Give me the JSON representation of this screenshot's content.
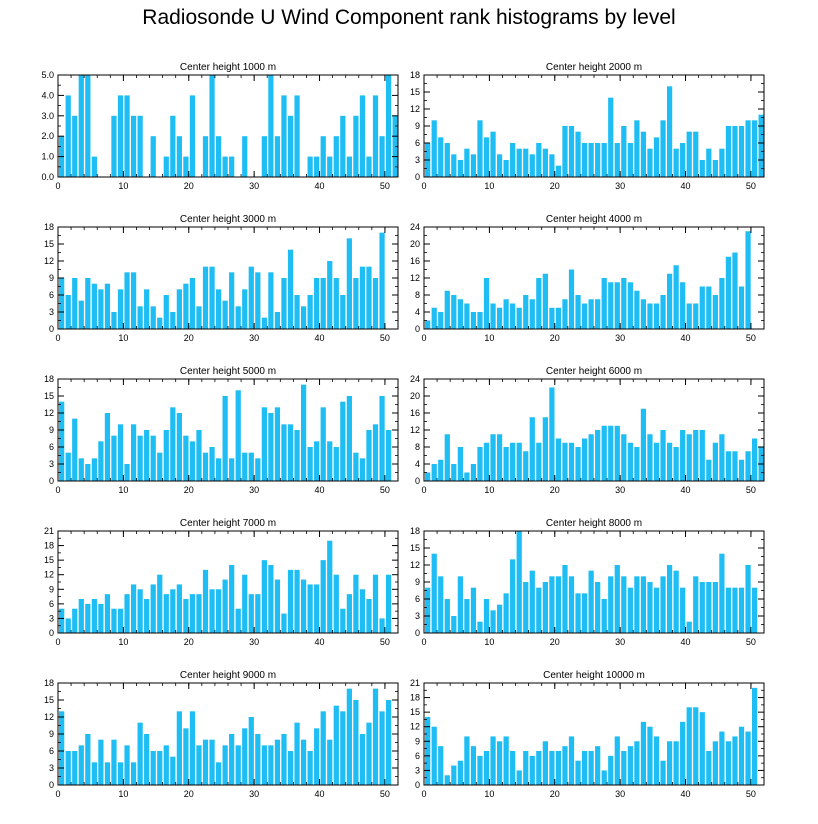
{
  "title": "Radiosonde U Wind Component rank histograms by level",
  "colors": {
    "bar": "#1ebdf4",
    "axis": "#000000",
    "background": "#ffffff"
  },
  "chart_data": [
    {
      "type": "bar",
      "title": "Center height 1000 m",
      "xlim": [
        0,
        52
      ],
      "ylim": [
        0,
        5
      ],
      "x_ticks": [
        0,
        10,
        20,
        30,
        40,
        50
      ],
      "x_tick_labels": [
        "0",
        "10",
        "20",
        "30",
        "40",
        "50"
      ],
      "y_ticks": [
        0,
        1,
        2,
        3,
        4,
        5
      ],
      "y_tick_labels": [
        "0.0",
        "1.0",
        "2.0",
        "3.0",
        "4.0",
        "5.0"
      ],
      "values": [
        2,
        4,
        3,
        5,
        5,
        1,
        0,
        0,
        3,
        4,
        4,
        3,
        3,
        0,
        2,
        0,
        1,
        3,
        2,
        1,
        4,
        0,
        2,
        5,
        2,
        1,
        1,
        0,
        2,
        0,
        0,
        2,
        5,
        2,
        4,
        3,
        4,
        0,
        1,
        1,
        2,
        1,
        2,
        3,
        1,
        3,
        4,
        1,
        4,
        2,
        5,
        3
      ]
    },
    {
      "type": "bar",
      "title": "Center height 2000 m",
      "xlim": [
        0,
        52
      ],
      "ylim": [
        0,
        18
      ],
      "x_ticks": [
        0,
        10,
        20,
        30,
        40,
        50
      ],
      "x_tick_labels": [
        "0",
        "10",
        "20",
        "30",
        "40",
        "50"
      ],
      "y_ticks": [
        0,
        3,
        6,
        9,
        12,
        15,
        18
      ],
      "y_tick_labels": [
        "0",
        "3",
        "6",
        "9",
        "12",
        "15",
        "18"
      ],
      "values": [
        6,
        10,
        7,
        6,
        4,
        3,
        5,
        4,
        10,
        7,
        8,
        4,
        3,
        6,
        5,
        5,
        4,
        6,
        5,
        4,
        2,
        9,
        9,
        8,
        6,
        6,
        6,
        6,
        14,
        6,
        9,
        6,
        10,
        8,
        5,
        7,
        10,
        16,
        5,
        6,
        8,
        8,
        3,
        5,
        3,
        5,
        9,
        9,
        9,
        10,
        10,
        11
      ]
    },
    {
      "type": "bar",
      "title": "Center height 3000 m",
      "xlim": [
        0,
        52
      ],
      "ylim": [
        0,
        18
      ],
      "x_ticks": [
        0,
        10,
        20,
        30,
        40,
        50
      ],
      "x_tick_labels": [
        "0",
        "10",
        "20",
        "30",
        "40",
        "50"
      ],
      "y_ticks": [
        0,
        3,
        6,
        9,
        12,
        15,
        18
      ],
      "y_tick_labels": [
        "0",
        "3",
        "6",
        "9",
        "12",
        "15",
        "18"
      ],
      "values": [
        9,
        6,
        9,
        5,
        9,
        8,
        7,
        8,
        3,
        7,
        10,
        10,
        4,
        7,
        4,
        2,
        6,
        3,
        7,
        8,
        9,
        4,
        11,
        11,
        7,
        5,
        10,
        4,
        7,
        11,
        10,
        2,
        10,
        3,
        9,
        14,
        6,
        4,
        6,
        9,
        9,
        12,
        9,
        6,
        16,
        9,
        11,
        11,
        9,
        17,
        0,
        0
      ]
    },
    {
      "type": "bar",
      "title": "Center height 4000 m",
      "xlim": [
        0,
        52
      ],
      "ylim": [
        0,
        24
      ],
      "x_ticks": [
        0,
        10,
        20,
        30,
        40,
        50
      ],
      "x_tick_labels": [
        "0",
        "10",
        "20",
        "30",
        "40",
        "50"
      ],
      "y_ticks": [
        0,
        4,
        8,
        12,
        16,
        20,
        24
      ],
      "y_tick_labels": [
        "0",
        "4",
        "8",
        "12",
        "16",
        "20",
        "24"
      ],
      "values": [
        2,
        5,
        4,
        9,
        8,
        7,
        6,
        4,
        4,
        12,
        6,
        5,
        7,
        6,
        5,
        8,
        7,
        12,
        13,
        5,
        5,
        7,
        14,
        8,
        6,
        7,
        7,
        12,
        11,
        11,
        12,
        11,
        9,
        7,
        6,
        6,
        8,
        13,
        15,
        11,
        6,
        6,
        10,
        10,
        8,
        12,
        17,
        18,
        10,
        23,
        0,
        0
      ]
    },
    {
      "type": "bar",
      "title": "Center height 5000 m",
      "xlim": [
        0,
        52
      ],
      "ylim": [
        0,
        18
      ],
      "x_ticks": [
        0,
        10,
        20,
        30,
        40,
        50
      ],
      "x_tick_labels": [
        "0",
        "10",
        "20",
        "30",
        "40",
        "50"
      ],
      "y_ticks": [
        0,
        3,
        6,
        9,
        12,
        15,
        18
      ],
      "y_tick_labels": [
        "0",
        "3",
        "6",
        "9",
        "12",
        "15",
        "18"
      ],
      "values": [
        14,
        5,
        11,
        4,
        3,
        4,
        7,
        12,
        8,
        10,
        3,
        10,
        8,
        9,
        8,
        5,
        9,
        13,
        12,
        8,
        7,
        9,
        5,
        6,
        4,
        15,
        4,
        16,
        5,
        5,
        4,
        13,
        12,
        13,
        10,
        10,
        9,
        17,
        6,
        7,
        13,
        7,
        6,
        14,
        15,
        5,
        4,
        9,
        10,
        15,
        9,
        0
      ]
    },
    {
      "type": "bar",
      "title": "Center height 6000 m",
      "xlim": [
        0,
        52
      ],
      "ylim": [
        0,
        24
      ],
      "x_ticks": [
        0,
        10,
        20,
        30,
        40,
        50
      ],
      "x_tick_labels": [
        "0",
        "10",
        "20",
        "30",
        "40",
        "50"
      ],
      "y_ticks": [
        0,
        4,
        8,
        12,
        16,
        20,
        24
      ],
      "y_tick_labels": [
        "0",
        "4",
        "8",
        "12",
        "16",
        "20",
        "24"
      ],
      "values": [
        2,
        4,
        5,
        11,
        4,
        8,
        2,
        4,
        8,
        9,
        11,
        11,
        8,
        9,
        9,
        7,
        15,
        9,
        15,
        22,
        10,
        9,
        9,
        8,
        10,
        11,
        12,
        13,
        13,
        13,
        11,
        9,
        8,
        17,
        11,
        9,
        12,
        9,
        8,
        12,
        11,
        12,
        12,
        5,
        9,
        11,
        7,
        7,
        5,
        7,
        10,
        8
      ]
    },
    {
      "type": "bar",
      "title": "Center height 7000 m",
      "xlim": [
        0,
        52
      ],
      "ylim": [
        0,
        21
      ],
      "x_ticks": [
        0,
        10,
        20,
        30,
        40,
        50
      ],
      "x_tick_labels": [
        "0",
        "10",
        "20",
        "30",
        "40",
        "50"
      ],
      "y_ticks": [
        0,
        3,
        6,
        9,
        12,
        15,
        18,
        21
      ],
      "y_tick_labels": [
        "0",
        "3",
        "6",
        "9",
        "12",
        "15",
        "18",
        "21"
      ],
      "values": [
        5,
        3,
        5,
        7,
        6,
        7,
        6,
        8,
        5,
        5,
        8,
        10,
        9,
        7,
        10,
        12,
        8,
        9,
        10,
        7,
        8,
        8,
        13,
        9,
        9,
        11,
        14,
        5,
        12,
        8,
        8,
        15,
        14,
        11,
        4,
        13,
        13,
        11,
        10,
        10,
        15,
        19,
        12,
        5,
        8,
        12,
        9,
        7,
        12,
        3,
        12,
        0
      ]
    },
    {
      "type": "bar",
      "title": "Center height 8000 m",
      "xlim": [
        0,
        52
      ],
      "ylim": [
        0,
        18
      ],
      "x_ticks": [
        0,
        10,
        20,
        30,
        40,
        50
      ],
      "x_tick_labels": [
        "0",
        "10",
        "20",
        "30",
        "40",
        "50"
      ],
      "y_ticks": [
        0,
        3,
        6,
        9,
        12,
        15,
        18
      ],
      "y_tick_labels": [
        "0",
        "3",
        "6",
        "9",
        "12",
        "15",
        "18"
      ],
      "values": [
        8,
        14,
        10,
        6,
        3,
        10,
        6,
        8,
        2,
        6,
        4,
        5,
        7,
        13,
        18,
        9,
        11,
        8,
        9,
        10,
        10,
        12,
        10,
        7,
        7,
        11,
        9,
        6,
        10,
        12,
        10,
        8,
        10,
        10,
        9,
        8,
        10,
        12,
        11,
        8,
        2,
        10,
        9,
        9,
        9,
        14,
        8,
        8,
        8,
        12,
        8,
        0
      ]
    },
    {
      "type": "bar",
      "title": "Center height 9000 m",
      "xlim": [
        0,
        52
      ],
      "ylim": [
        0,
        18
      ],
      "x_ticks": [
        0,
        10,
        20,
        30,
        40,
        50
      ],
      "x_tick_labels": [
        "0",
        "10",
        "20",
        "30",
        "40",
        "50"
      ],
      "y_ticks": [
        0,
        3,
        6,
        9,
        12,
        15,
        18
      ],
      "y_tick_labels": [
        "0",
        "3",
        "6",
        "9",
        "12",
        "15",
        "18"
      ],
      "values": [
        13,
        6,
        6,
        7,
        9,
        4,
        8,
        4,
        8,
        4,
        7,
        4,
        11,
        9,
        6,
        6,
        7,
        5,
        13,
        10,
        13,
        7,
        8,
        8,
        4,
        7,
        9,
        7,
        10,
        12,
        9,
        7,
        7,
        8,
        9,
        6,
        11,
        8,
        6,
        10,
        13,
        8,
        14,
        13,
        17,
        15,
        9,
        11,
        17,
        13,
        15,
        0
      ]
    },
    {
      "type": "bar",
      "title": "Center height 10000 m",
      "xlim": [
        0,
        52
      ],
      "ylim": [
        0,
        21
      ],
      "x_ticks": [
        0,
        10,
        20,
        30,
        40,
        50
      ],
      "x_tick_labels": [
        "0",
        "10",
        "20",
        "30",
        "40",
        "50"
      ],
      "y_ticks": [
        0,
        3,
        6,
        9,
        12,
        15,
        18,
        21
      ],
      "y_tick_labels": [
        "0",
        "3",
        "6",
        "9",
        "12",
        "15",
        "18",
        "21"
      ],
      "values": [
        14,
        12,
        8,
        2,
        4,
        5,
        10,
        8,
        6,
        7,
        10,
        9,
        10,
        7,
        3,
        7,
        6,
        7,
        9,
        7,
        7,
        8,
        10,
        5,
        7,
        7,
        8,
        3,
        6,
        10,
        7,
        8,
        9,
        13,
        12,
        10,
        5,
        9,
        9,
        13,
        16,
        16,
        15,
        7,
        9,
        11,
        9,
        10,
        12,
        11,
        20,
        0
      ]
    }
  ]
}
